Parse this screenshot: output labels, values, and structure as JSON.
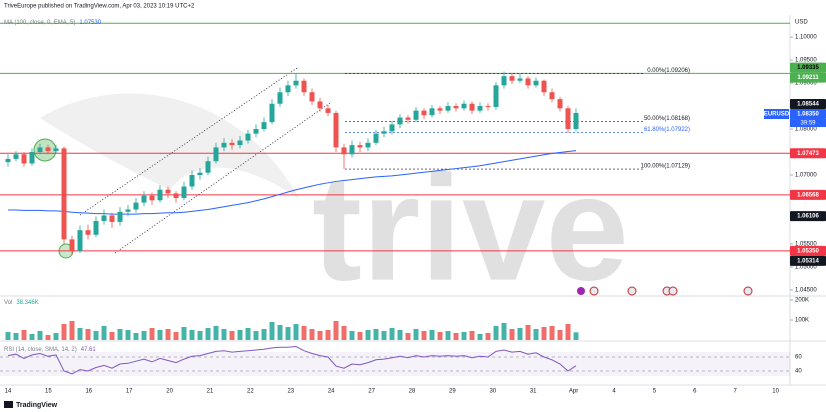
{
  "header": "TriveEurope published on TradingView.com, Apr 03, 2023 10:19 UTC+2",
  "footer": "TradingView",
  "watermark": "trive",
  "chart_data": [
    {
      "type": "candlestick",
      "symbol": "EURUSD",
      "currency": "USD",
      "countdown": "39:59",
      "dates": [
        "14",
        "15",
        "16",
        "17",
        "20",
        "21",
        "22",
        "23",
        "24",
        "27",
        "28",
        "29",
        "30",
        "31",
        "Apr",
        "4",
        "5",
        "6",
        "7",
        "10"
      ],
      "open": [
        1.0728,
        1.0735,
        1.0745,
        1.0725,
        1.075,
        1.076,
        1.0752,
        1.0758,
        1.056,
        1.0535,
        1.058,
        1.057,
        1.06,
        1.0612,
        1.0598,
        1.062,
        1.0625,
        1.064,
        1.0655,
        1.0645,
        1.0668,
        1.066,
        1.065,
        1.0675,
        1.07,
        1.0705,
        1.073,
        1.076,
        1.077,
        1.0765,
        1.0775,
        1.079,
        1.08,
        1.0815,
        1.0855,
        1.088,
        1.0895,
        1.0905,
        1.088,
        1.086,
        1.0845,
        1.0835,
        1.076,
        1.0745,
        1.0765,
        1.076,
        1.077,
        1.079,
        1.0795,
        1.081,
        1.0825,
        1.082,
        1.084,
        1.083,
        1.0845,
        1.084,
        1.085,
        1.0845,
        1.0855,
        1.084,
        1.085,
        1.0848,
        1.0895,
        1.0915,
        1.0905,
        1.091,
        1.0895,
        1.0905,
        1.088,
        1.0865,
        1.0845,
        1.08
      ],
      "high": [
        1.0745,
        1.0752,
        1.075,
        1.0758,
        1.0768,
        1.0766,
        1.0765,
        1.0762,
        1.0568,
        1.059,
        1.0592,
        1.061,
        1.0625,
        1.0618,
        1.063,
        1.0635,
        1.065,
        1.0665,
        1.0662,
        1.0678,
        1.0675,
        1.0665,
        1.0685,
        1.071,
        1.0715,
        1.074,
        1.077,
        1.078,
        1.0778,
        1.0785,
        1.0798,
        1.081,
        1.0825,
        1.0865,
        1.089,
        1.0905,
        1.092,
        1.091,
        1.0888,
        1.0868,
        1.0852,
        1.084,
        1.0768,
        1.0775,
        1.0772,
        1.078,
        1.0798,
        1.0805,
        1.0818,
        1.0832,
        1.083,
        1.0848,
        1.0845,
        1.0852,
        1.085,
        1.0858,
        1.0856,
        1.0862,
        1.086,
        1.0858,
        1.0856,
        1.0902,
        1.0925,
        1.0922,
        1.092,
        1.0915,
        1.0912,
        1.0908,
        1.0888,
        1.087,
        1.085,
        1.0845
      ],
      "low": [
        1.0718,
        1.073,
        1.0718,
        1.072,
        1.0745,
        1.0745,
        1.0748,
        1.055,
        1.0526,
        1.053,
        1.056,
        1.0565,
        1.0592,
        1.0585,
        1.059,
        1.061,
        1.0618,
        1.0632,
        1.0635,
        1.064,
        1.065,
        1.064,
        1.0645,
        1.0668,
        1.069,
        1.07,
        1.0725,
        1.0752,
        1.0755,
        1.0758,
        1.0768,
        1.0782,
        1.0795,
        1.081,
        1.0848,
        1.0872,
        1.0888,
        1.0872,
        1.0852,
        1.0838,
        1.0828,
        1.075,
        1.0713,
        1.0738,
        1.075,
        1.0752,
        1.0765,
        1.0782,
        1.0788,
        1.0802,
        1.0812,
        1.0815,
        1.0822,
        1.0825,
        1.0832,
        1.0835,
        1.0838,
        1.084,
        1.0832,
        1.0835,
        1.084,
        1.0842,
        1.0888,
        1.0898,
        1.09,
        1.0888,
        1.089,
        1.0872,
        1.0858,
        1.0838,
        1.0792,
        1.0795
      ],
      "close": [
        1.0735,
        1.0745,
        1.0725,
        1.075,
        1.076,
        1.0752,
        1.0758,
        1.056,
        1.0535,
        1.058,
        1.057,
        1.06,
        1.0612,
        1.0598,
        1.062,
        1.0625,
        1.064,
        1.0655,
        1.0645,
        1.0668,
        1.066,
        1.065,
        1.0675,
        1.07,
        1.0705,
        1.073,
        1.076,
        1.077,
        1.0765,
        1.0775,
        1.079,
        1.08,
        1.0815,
        1.0855,
        1.088,
        1.0895,
        1.0905,
        1.088,
        1.086,
        1.0845,
        1.0835,
        1.076,
        1.0745,
        1.0765,
        1.076,
        1.077,
        1.079,
        1.0795,
        1.081,
        1.0825,
        1.082,
        1.084,
        1.083,
        1.0845,
        1.084,
        1.085,
        1.0845,
        1.0855,
        1.084,
        1.085,
        1.0848,
        1.0895,
        1.0915,
        1.0905,
        1.091,
        1.0895,
        1.0905,
        1.088,
        1.0865,
        1.0845,
        1.08,
        1.0835
      ],
      "up_color": "#26a69a",
      "down_color": "#ef5350",
      "ylim": [
        1.0439,
        1.1048
      ],
      "yticks": [
        {
          "value": 1.1,
          "label": "1.10000"
        },
        {
          "value": 1.095,
          "label": "1.09500"
        },
        {
          "value": 1.09,
          "label": "1.09000"
        },
        {
          "value": 1.08,
          "label": "1.08000"
        },
        {
          "value": 1.07,
          "label": "1.07000"
        },
        {
          "value": 1.055,
          "label": "1.05500"
        },
        {
          "value": 1.05,
          "label": "1.05000"
        },
        {
          "value": 1.045,
          "label": "1.04500"
        }
      ],
      "indicator": {
        "name": "MA (100, close, 0, EMA, 5)",
        "value_label": "1.07530",
        "color": "#2962ff",
        "values": [
          1.0624,
          1.0624,
          1.0623,
          1.0623,
          1.0623,
          1.0622,
          1.0622,
          1.0621,
          1.0619,
          1.0618,
          1.0617,
          1.0616,
          1.0616,
          1.0615,
          1.0615,
          1.0615,
          1.0615,
          1.0616,
          1.0616,
          1.0617,
          1.0618,
          1.0618,
          1.0619,
          1.0621,
          1.0623,
          1.0625,
          1.0628,
          1.0631,
          1.0634,
          1.0637,
          1.064,
          1.0644,
          1.0648,
          1.0653,
          1.0658,
          1.0663,
          1.0668,
          1.0672,
          1.0676,
          1.068,
          1.0683,
          1.0686,
          1.0688,
          1.069,
          1.0692,
          1.0694,
          1.0696,
          1.0697,
          1.0698,
          1.07,
          1.0702,
          1.0704,
          1.0706,
          1.0708,
          1.071,
          1.0712,
          1.0714,
          1.0716,
          1.0718,
          1.072,
          1.0723,
          1.0726,
          1.0729,
          1.0732,
          1.0735,
          1.0738,
          1.0741,
          1.0744,
          1.0747,
          1.0749,
          1.0751,
          1.0753
        ]
      },
      "levels": [
        {
          "value": 1.103,
          "color": "#4caf50"
        },
        {
          "value": 1.09211,
          "color": "#4caf50"
        },
        {
          "value": 1.07473,
          "color": "#f23645"
        },
        {
          "value": 1.06568,
          "color": "#f23645"
        },
        {
          "value": 1.0535,
          "color": "#f23645"
        }
      ],
      "fib": [
        {
          "label": "0.00%(1.09206)",
          "value": 1.09206,
          "color": "#131722"
        },
        {
          "label": "50.00%(1.08168)",
          "value": 1.08168,
          "color": "#131722"
        },
        {
          "label": "61.80%(1.07922)",
          "value": 1.07922,
          "color": "#2962ff"
        },
        {
          "label": "100.00%(1.07129)",
          "value": 1.07129,
          "color": "#131722"
        }
      ],
      "price_labels": [
        {
          "label": "1.09335",
          "value": 1.09335,
          "bg": "#4caf50",
          "fg": "#000000"
        },
        {
          "label": "1.09211",
          "value": 1.09211,
          "bg": "#4caf50",
          "fg": "#ffffff"
        },
        {
          "label": "1.08544",
          "value": 1.08544,
          "bg": "#131722",
          "fg": "#ffffff"
        },
        {
          "label": "1.08350",
          "value": 1.0835,
          "bg": "#2962ff",
          "fg": "#ffffff"
        },
        {
          "label": "1.07473",
          "value": 1.07473,
          "bg": "#f23645",
          "fg": "#ffffff"
        },
        {
          "label": "1.06568",
          "value": 1.06568,
          "bg": "#f23645",
          "fg": "#ffffff"
        },
        {
          "label": "1.06106",
          "value": 1.06106,
          "bg": "#131722",
          "fg": "#ffffff"
        },
        {
          "label": "1.05350",
          "value": 1.0535,
          "bg": "#f23645",
          "fg": "#ffffff"
        },
        {
          "label": "1.05314",
          "value": 1.05314,
          "bg": "#131722",
          "fg": "#ffffff"
        }
      ]
    },
    {
      "type": "bar",
      "name": "Vol",
      "value_label": "38.346K",
      "values": [
        40000,
        35000,
        50000,
        30000,
        45000,
        25000,
        35000,
        80000,
        95000,
        60000,
        55000,
        45000,
        70000,
        40000,
        55000,
        50000,
        35000,
        45000,
        60000,
        50000,
        55000,
        40000,
        65000,
        50000,
        45000,
        60000,
        70000,
        55000,
        45000,
        50000,
        60000,
        45000,
        55000,
        90000,
        75000,
        65000,
        80000,
        70000,
        55000,
        45000,
        50000,
        95000,
        70000,
        45000,
        40000,
        50000,
        55000,
        45000,
        60000,
        50000,
        35000,
        55000,
        45000,
        50000,
        40000,
        45000,
        35000,
        40000,
        45000,
        30000,
        35000,
        70000,
        85000,
        55000,
        60000,
        75000,
        55000,
        65000,
        70000,
        50000,
        80000,
        38346
      ],
      "ylim": [
        0,
        215000
      ],
      "yticks": [
        {
          "value": 200000,
          "label": "200K"
        },
        {
          "value": 100000,
          "label": "100K"
        }
      ]
    },
    {
      "type": "line",
      "name": "RSI (14, close, SMA, 14, 2)",
      "value_label": "47.61",
      "color": "#7e57c2",
      "values": [
        62,
        64,
        58,
        63,
        65,
        61,
        63,
        40,
        36,
        42,
        40,
        45,
        48,
        44,
        50,
        51,
        54,
        57,
        53,
        58,
        55,
        52,
        57,
        61,
        62,
        65,
        68,
        69,
        67,
        68,
        69,
        70,
        71,
        73,
        74,
        74,
        75,
        69,
        65,
        62,
        60,
        47,
        44,
        50,
        49,
        52,
        56,
        57,
        59,
        61,
        59,
        62,
        60,
        62,
        61,
        62,
        61,
        62,
        59,
        61,
        60,
        68,
        70,
        67,
        68,
        64,
        66,
        60,
        56,
        50,
        40,
        47.61
      ],
      "ylim": [
        20,
        80
      ],
      "yticks": [
        60,
        40
      ]
    }
  ]
}
